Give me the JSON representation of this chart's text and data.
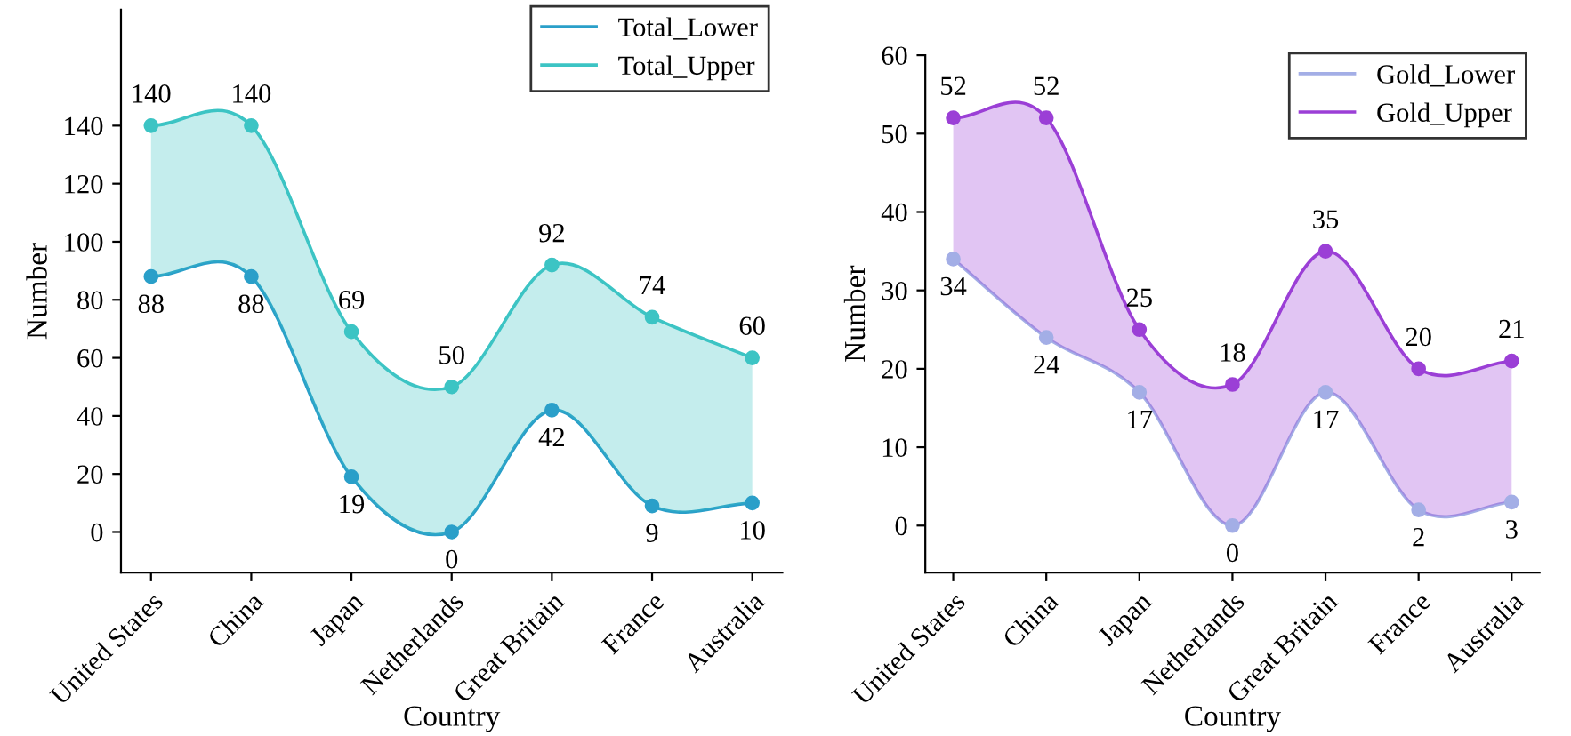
{
  "chart_data": [
    {
      "type": "line",
      "xlabel": "Country",
      "ylabel": "Number",
      "categories": [
        "United States",
        "China",
        "Japan",
        "Netherlands",
        "Great Britain",
        "France",
        "Australia"
      ],
      "series": [
        {
          "name": "Total_Lower",
          "color": "#2a9fc9",
          "values": [
            88,
            88,
            19,
            0,
            42,
            9,
            10
          ]
        },
        {
          "name": "Total_Upper",
          "color": "#3cc4c4",
          "values": [
            140,
            140,
            69,
            50,
            92,
            74,
            60
          ],
          "lower": [
            88,
            88,
            19,
            0,
            42,
            9,
            10
          ],
          "upper": [
            140,
            140,
            69,
            50,
            92,
            74,
            60
          ]
        }
      ],
      "ylim": [
        -14,
        180
      ],
      "yticks": [
        0,
        20,
        40,
        60,
        80,
        100,
        120,
        140
      ],
      "marker": "circle",
      "data_labels": true,
      "legend": "top right",
      "grid": false
    },
    {
      "type": "line",
      "xlabel": "Country",
      "ylabel": "Number",
      "categories": [
        "United States",
        "China",
        "Japan",
        "Netherlands",
        "Great Britain",
        "France",
        "Australia"
      ],
      "series": [
        {
          "name": "Gold_Lower",
          "color": "#a3aee6",
          "values": [
            34,
            24,
            17,
            0,
            17,
            2,
            3
          ]
        },
        {
          "name": "Gold_Upper",
          "color": "#9b3fd6",
          "values": [
            52,
            52,
            25,
            18,
            35,
            20,
            21
          ],
          "lower": [
            34,
            24,
            17,
            0,
            17,
            2,
            3
          ],
          "upper": [
            52,
            52,
            25,
            18,
            35,
            20,
            21
          ]
        }
      ],
      "ylim": [
        -6,
        60
      ],
      "yticks": [
        0,
        10,
        20,
        30,
        40,
        50,
        60
      ],
      "marker": "circle",
      "data_labels": true,
      "legend": "top right",
      "grid": false
    }
  ]
}
